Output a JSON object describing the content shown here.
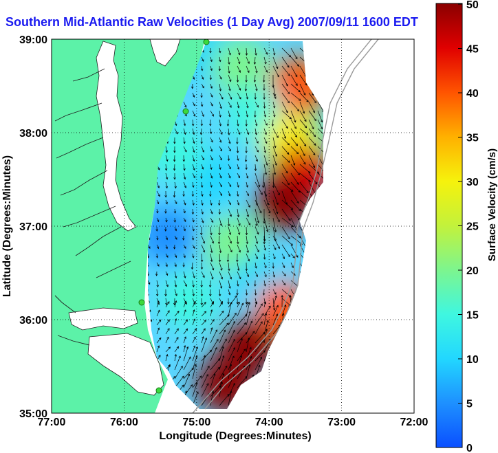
{
  "window": {
    "title": "Southern Mid-Atlantic Raw Velocities (1 Day Avg) 2007/09/11 1600 EDT"
  },
  "colors": {
    "land": "#5cf2a8",
    "ocean": "#ffffff",
    "title": "#1a1af0",
    "colormap": [
      "#0a4fff",
      "#1e90ff",
      "#22d7ff",
      "#3ff7e0",
      "#7df58e",
      "#c3f23b",
      "#f6f20c",
      "#ffb000",
      "#ff5400",
      "#e00000",
      "#8a0000"
    ]
  },
  "chart_data": {
    "type": "heatmap",
    "title": "Southern Mid-Atlantic Raw Velocities (1 Day Avg) 2007/09/11 1600 EDT",
    "xlabel": "Longitude (Degrees:Minutes)",
    "ylabel": "Latitude (Degrees:Minutes)",
    "xlim": [
      -77,
      -72
    ],
    "ylim": [
      35,
      39
    ],
    "xticks": [
      "77:00",
      "76:00",
      "75:00",
      "74:00",
      "73:00",
      "72:00"
    ],
    "yticks": [
      "39:00",
      "38:00",
      "37:00",
      "36:00",
      "35:00"
    ],
    "grid": "dotted",
    "colorbar": {
      "label": "Surface Velocity (cm/s)",
      "range": [
        0,
        50
      ],
      "ticks": [
        "50",
        "45",
        "40",
        "35",
        "30",
        "25",
        "20",
        "15",
        "10",
        "5",
        "0"
      ]
    },
    "series": [
      {
        "values": [
          {
            "lon": -74.85,
            "lat": 38.85,
            "speed": 8
          },
          {
            "lon": -74.4,
            "lat": 38.7,
            "speed": 18
          },
          {
            "lon": -73.6,
            "lat": 38.5,
            "speed": 40
          },
          {
            "lon": -74.2,
            "lat": 38.2,
            "speed": 15
          },
          {
            "lon": -73.7,
            "lat": 37.9,
            "speed": 32
          },
          {
            "lon": -73.55,
            "lat": 37.55,
            "speed": 45
          },
          {
            "lon": -73.8,
            "lat": 37.25,
            "speed": 48
          },
          {
            "lon": -74.8,
            "lat": 37.5,
            "speed": 10
          },
          {
            "lon": -75.4,
            "lat": 36.9,
            "speed": 6
          },
          {
            "lon": -74.5,
            "lat": 36.8,
            "speed": 22
          },
          {
            "lon": -74.1,
            "lat": 36.4,
            "speed": 12
          },
          {
            "lon": -73.8,
            "lat": 36.1,
            "speed": 38
          },
          {
            "lon": -74.3,
            "lat": 35.7,
            "speed": 48
          },
          {
            "lon": -74.6,
            "lat": 35.3,
            "speed": 50
          },
          {
            "lon": -75.1,
            "lat": 36.2,
            "speed": 16
          },
          {
            "lon": -75.3,
            "lat": 37.8,
            "speed": 14
          }
        ]
      }
    ]
  }
}
